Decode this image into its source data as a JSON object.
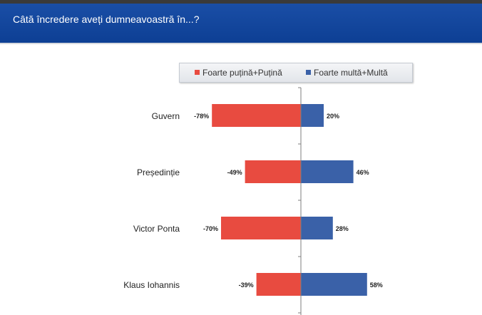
{
  "header": {
    "title": "Câtă încredere aveți dumneavoastră în...?"
  },
  "colors": {
    "negative": "#e84b40",
    "positive": "#3a61a8",
    "header_bg": "#0d3f94",
    "axis": "#7f7f7f"
  },
  "chart_data": {
    "type": "bar",
    "orientation": "horizontal-diverging",
    "title": "Câtă încredere aveți dumneavoastră în...?",
    "categories": [
      "Guvern",
      "Președinție",
      "Victor Ponta",
      "Klaus Iohannis"
    ],
    "series": [
      {
        "name": "Foarte puțină+Puțină",
        "values": [
          -78,
          -49,
          -70,
          -39
        ],
        "labels": [
          "-78%",
          "-49%",
          "-70%",
          "-39%"
        ]
      },
      {
        "name": "Foarte multă+Multă",
        "values": [
          20,
          46,
          28,
          58
        ],
        "labels": [
          "20%",
          "46%",
          "28%",
          "58%"
        ]
      }
    ],
    "legend_position": "top",
    "grid": false,
    "xlim": [
      -80,
      80
    ]
  }
}
